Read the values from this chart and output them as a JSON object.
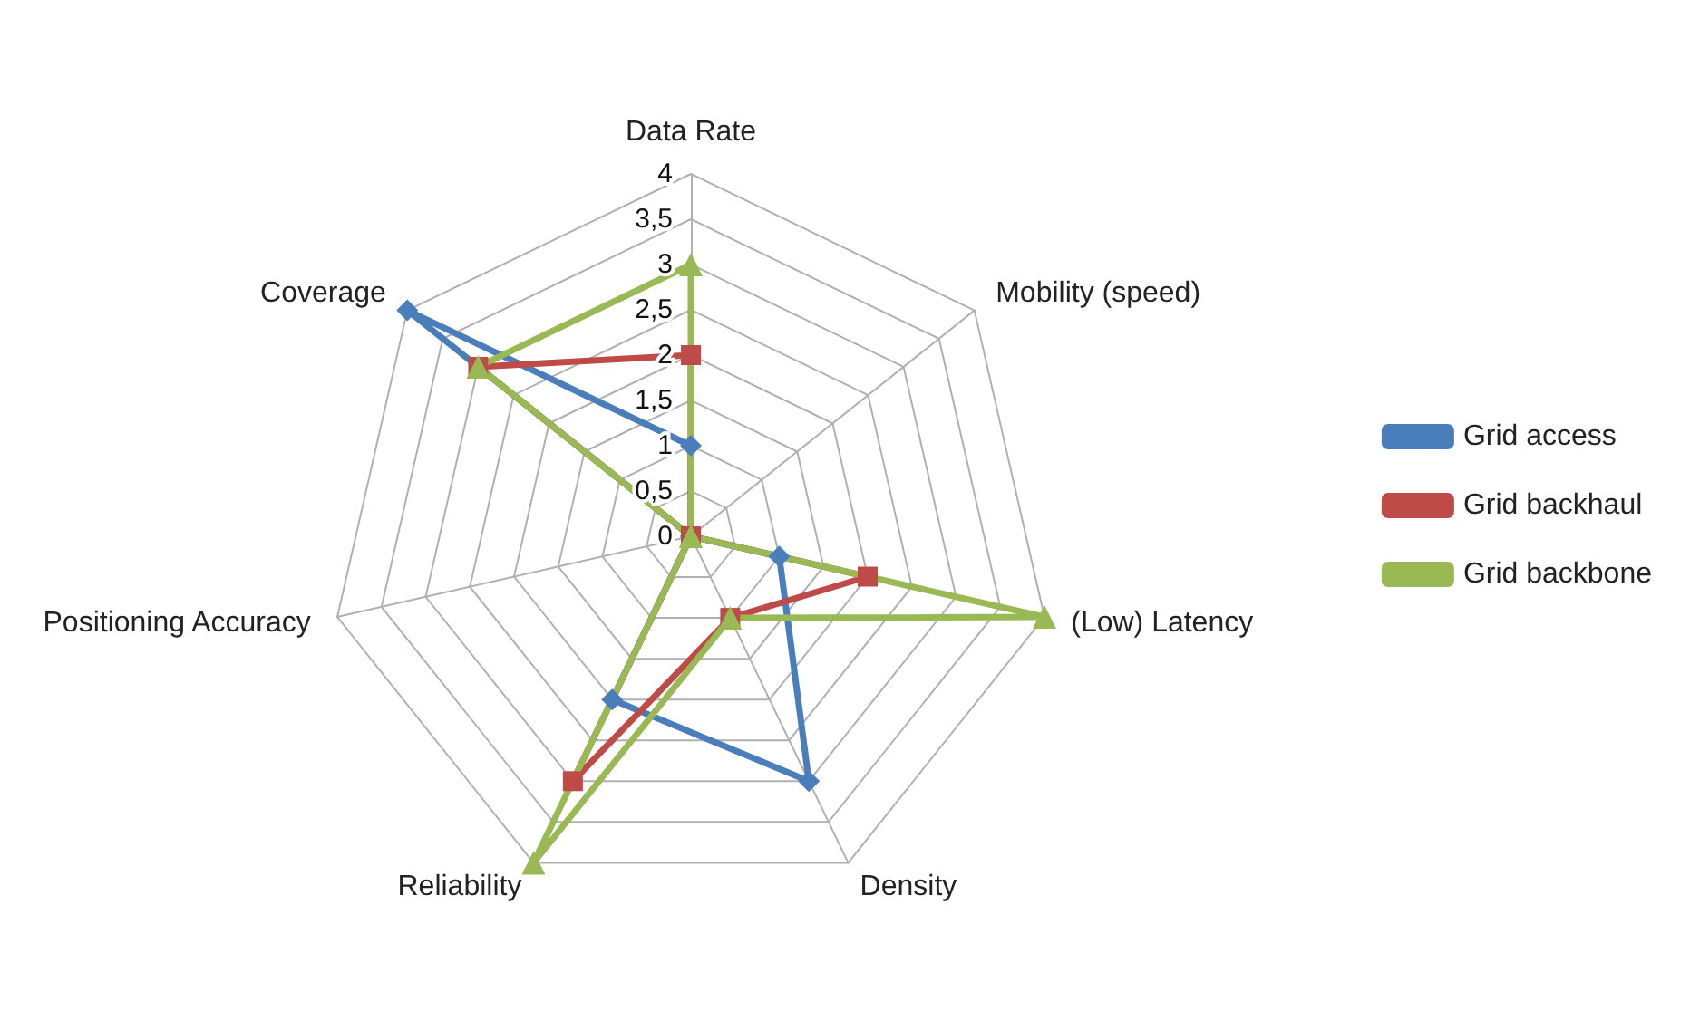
{
  "chart_data": {
    "type": "radar",
    "categories": [
      "Data Rate",
      "Mobility (speed)",
      "(Low) Latency",
      "Density",
      "Reliability",
      "Positioning Accuracy",
      "Coverage"
    ],
    "series": [
      {
        "name": "Grid access",
        "color": "#4a7ebb",
        "marker": "diamond",
        "values": [
          1,
          0,
          1,
          3,
          2,
          0,
          4
        ]
      },
      {
        "name": "Grid backhaul",
        "color": "#be4b48",
        "marker": "square",
        "values": [
          2,
          0,
          2,
          1,
          3,
          0,
          3
        ]
      },
      {
        "name": "Grid backbone",
        "color": "#98b954",
        "marker": "triangle",
        "values": [
          3,
          0,
          4,
          1,
          4,
          0,
          3
        ]
      }
    ],
    "ylim": [
      0,
      4
    ],
    "yticks": [
      0,
      {
        "value": 0.5,
        "label": "0,5"
      },
      1,
      {
        "value": 1.5,
        "label": "1,5"
      },
      2,
      {
        "value": 2.5,
        "label": "2,5"
      },
      3,
      {
        "value": 3.5,
        "label": "3,5"
      },
      4
    ],
    "grid": true,
    "legend": "right"
  }
}
